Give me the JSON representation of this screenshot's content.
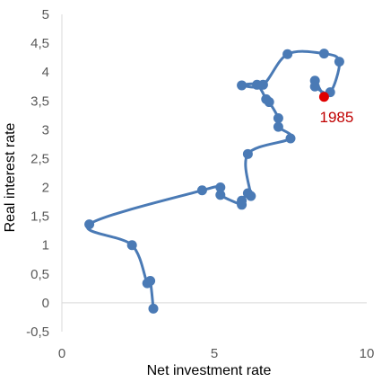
{
  "chart_data": {
    "type": "scatter",
    "title": "",
    "xlabel": "Net investment rate",
    "ylabel": "Real interest rate",
    "xlim": [
      0,
      10
    ],
    "ylim": [
      -0.5,
      5
    ],
    "x_ticks": [
      "0",
      "5",
      "10"
    ],
    "y_ticks": [
      "-0,5",
      "0",
      "0,5",
      "1",
      "1,5",
      "2",
      "2,5",
      "3",
      "3,5",
      "4",
      "4,5",
      "5"
    ],
    "grid": false,
    "legend": "none",
    "line_style": "smoothed",
    "series_color": "#4a7ab5",
    "highlight_color": "#e00000",
    "annotation": {
      "label": "1985",
      "x": 8.6,
      "y": 3.57,
      "color": "#c00000"
    },
    "points": [
      {
        "x": 3.0,
        "y": -0.1
      },
      {
        "x": 2.9,
        "y": 0.38
      },
      {
        "x": 2.8,
        "y": 0.34
      },
      {
        "x": 2.3,
        "y": 1.0
      },
      {
        "x": 0.9,
        "y": 1.36
      },
      {
        "x": 4.6,
        "y": 1.95
      },
      {
        "x": 5.2,
        "y": 2.0
      },
      {
        "x": 5.2,
        "y": 1.87
      },
      {
        "x": 5.9,
        "y": 1.7
      },
      {
        "x": 5.9,
        "y": 1.77
      },
      {
        "x": 6.1,
        "y": 1.9
      },
      {
        "x": 6.2,
        "y": 1.85
      },
      {
        "x": 6.1,
        "y": 2.58
      },
      {
        "x": 7.5,
        "y": 2.85
      },
      {
        "x": 7.1,
        "y": 3.05
      },
      {
        "x": 7.1,
        "y": 3.2
      },
      {
        "x": 6.8,
        "y": 3.48
      },
      {
        "x": 6.7,
        "y": 3.53
      },
      {
        "x": 6.4,
        "y": 3.78
      },
      {
        "x": 5.9,
        "y": 3.77
      },
      {
        "x": 6.6,
        "y": 3.78
      },
      {
        "x": 7.4,
        "y": 4.31
      },
      {
        "x": 8.6,
        "y": 4.32
      },
      {
        "x": 9.1,
        "y": 4.18
      },
      {
        "x": 8.8,
        "y": 3.65
      },
      {
        "x": 8.3,
        "y": 3.75
      },
      {
        "x": 8.3,
        "y": 3.85
      },
      {
        "x": 8.6,
        "y": 3.57,
        "highlight": true
      }
    ]
  }
}
